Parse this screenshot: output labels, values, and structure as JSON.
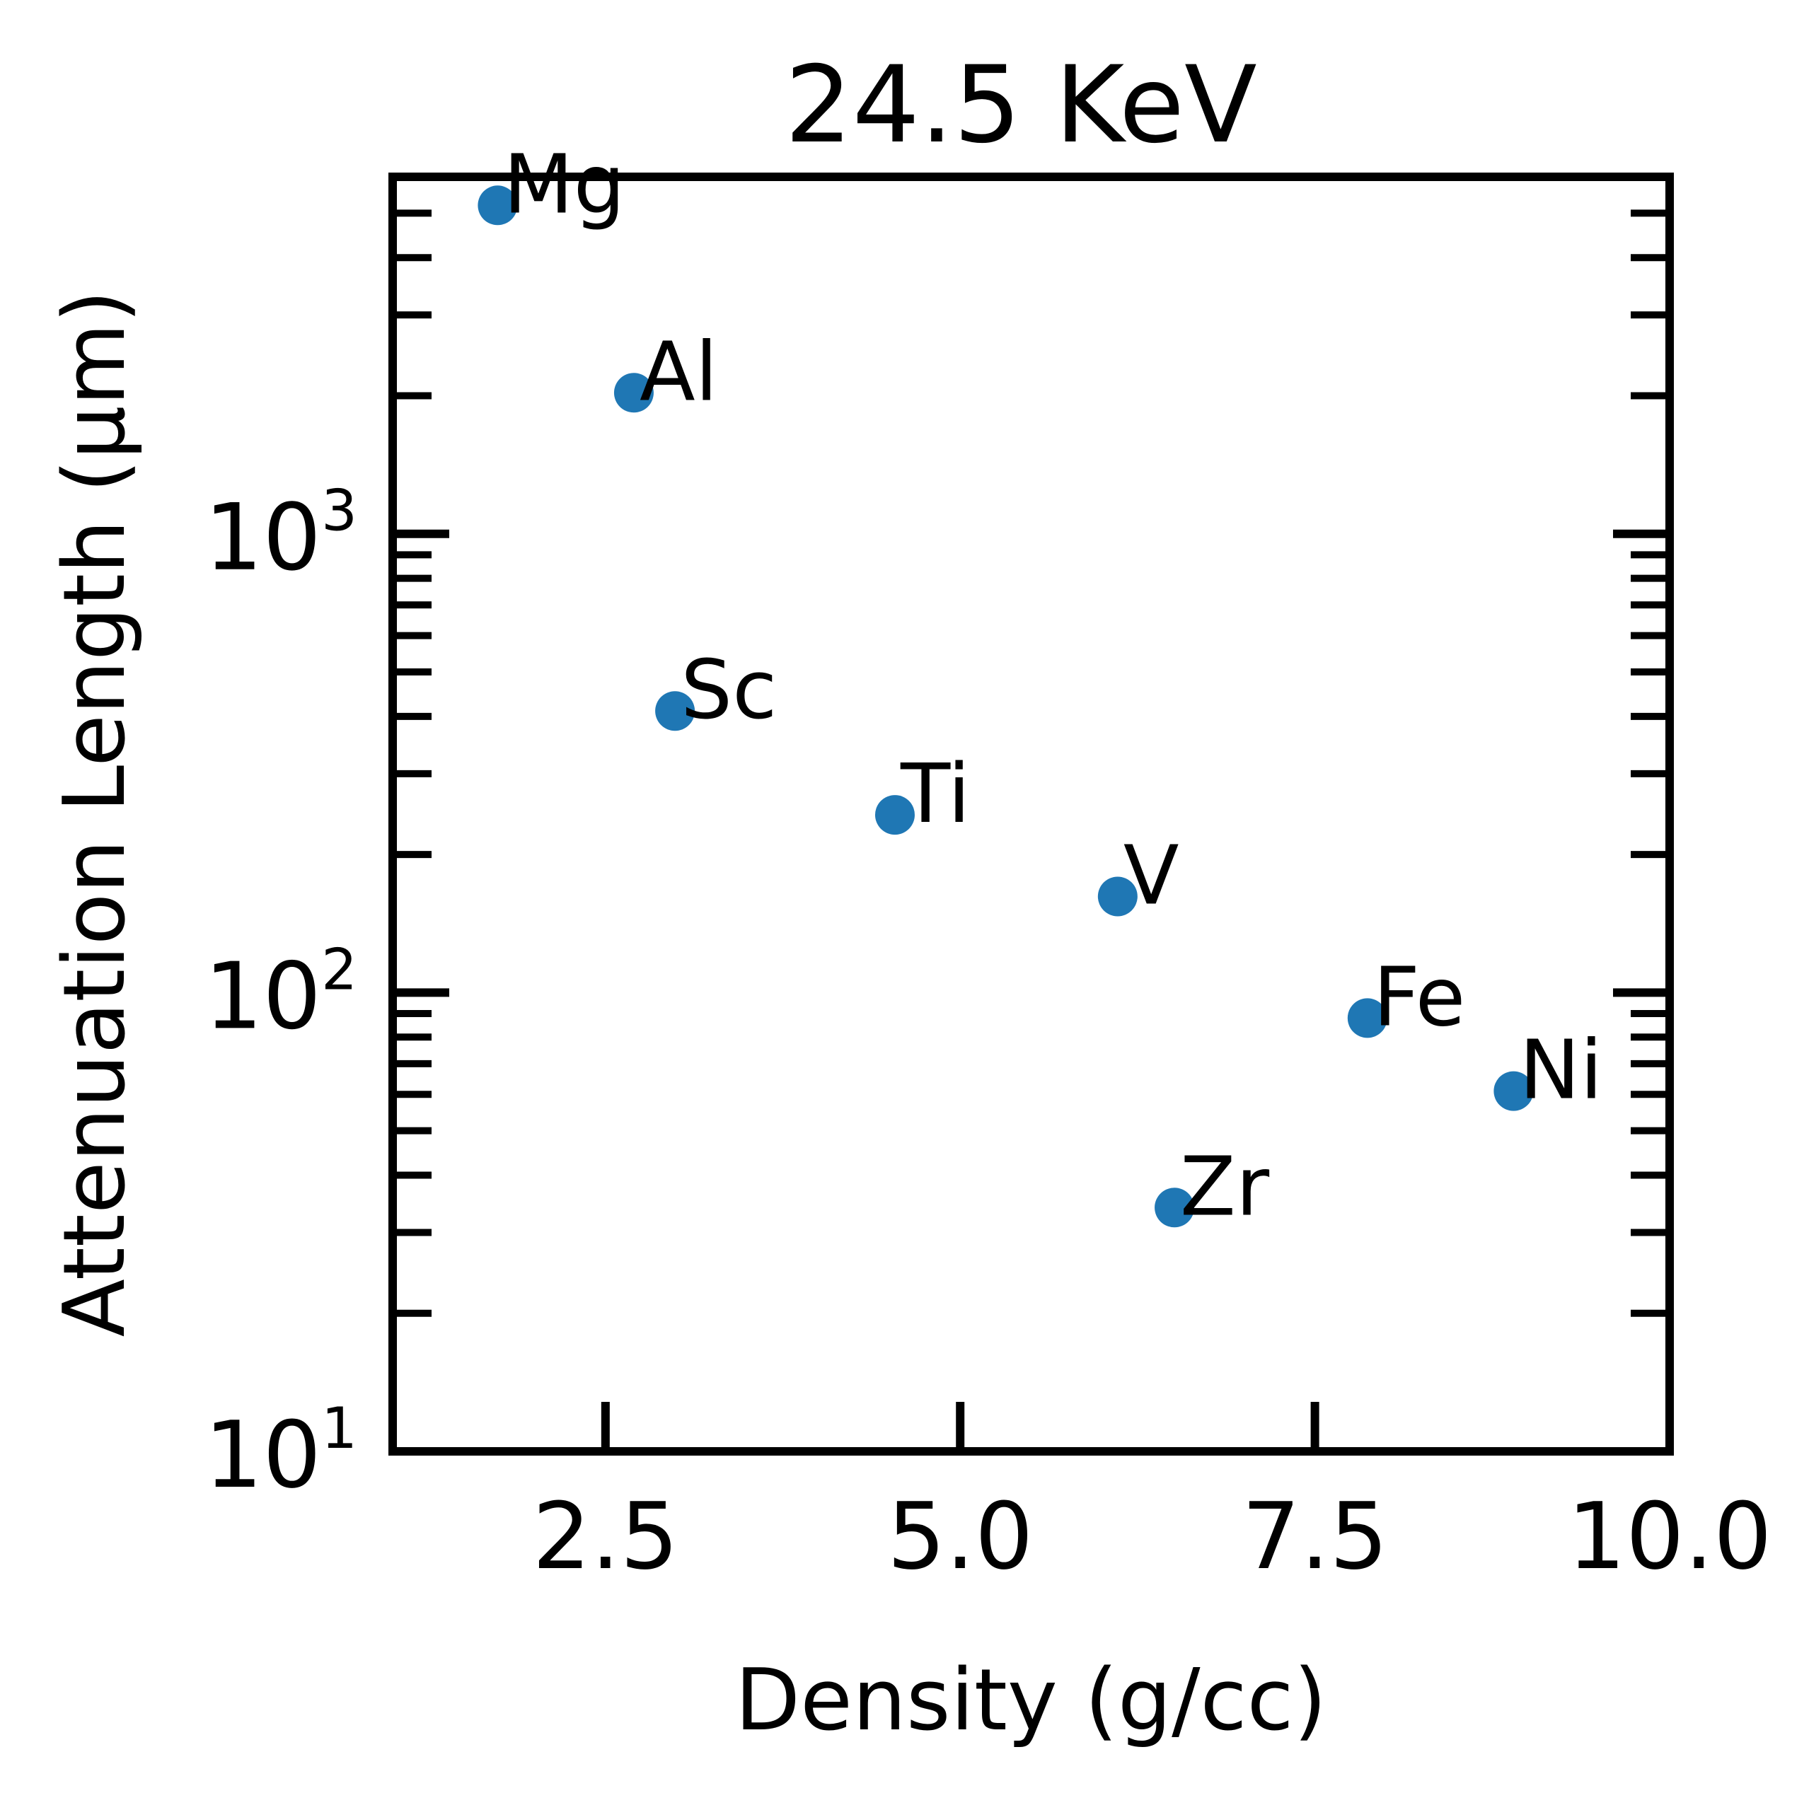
{
  "chart_data": {
    "type": "scatter",
    "title": "24.5 KeV",
    "xlabel": "Density (g/cc)",
    "ylabel": "Attenuation Length (μm)",
    "xlim": [
      1.0,
      10.0
    ],
    "ylim": [
      10,
      6000
    ],
    "yscale": "log",
    "grid": false,
    "marker_color": "#1f77b4",
    "xticks": [
      {
        "value": 2.5,
        "label": "2.5"
      },
      {
        "value": 5.0,
        "label": "5.0"
      },
      {
        "value": 7.5,
        "label": "7.5"
      },
      {
        "value": 10.0,
        "label": "10.0"
      }
    ],
    "yticks": [
      {
        "value": 10,
        "base": "10",
        "exp": "1"
      },
      {
        "value": 100,
        "base": "10",
        "exp": "2"
      },
      {
        "value": 1000,
        "base": "10",
        "exp": "3"
      }
    ],
    "points": [
      {
        "label": "Mg",
        "x": 1.74,
        "y": 5200
      },
      {
        "label": "Al",
        "x": 2.7,
        "y": 2030
      },
      {
        "label": "Sc",
        "x": 2.99,
        "y": 411
      },
      {
        "label": "Ti",
        "x": 4.54,
        "y": 244
      },
      {
        "label": "V",
        "x": 6.11,
        "y": 162
      },
      {
        "label": "Fe",
        "x": 7.87,
        "y": 88
      },
      {
        "label": "Ni",
        "x": 8.9,
        "y": 61
      },
      {
        "label": "Zr",
        "x": 6.51,
        "y": 34
      }
    ]
  }
}
